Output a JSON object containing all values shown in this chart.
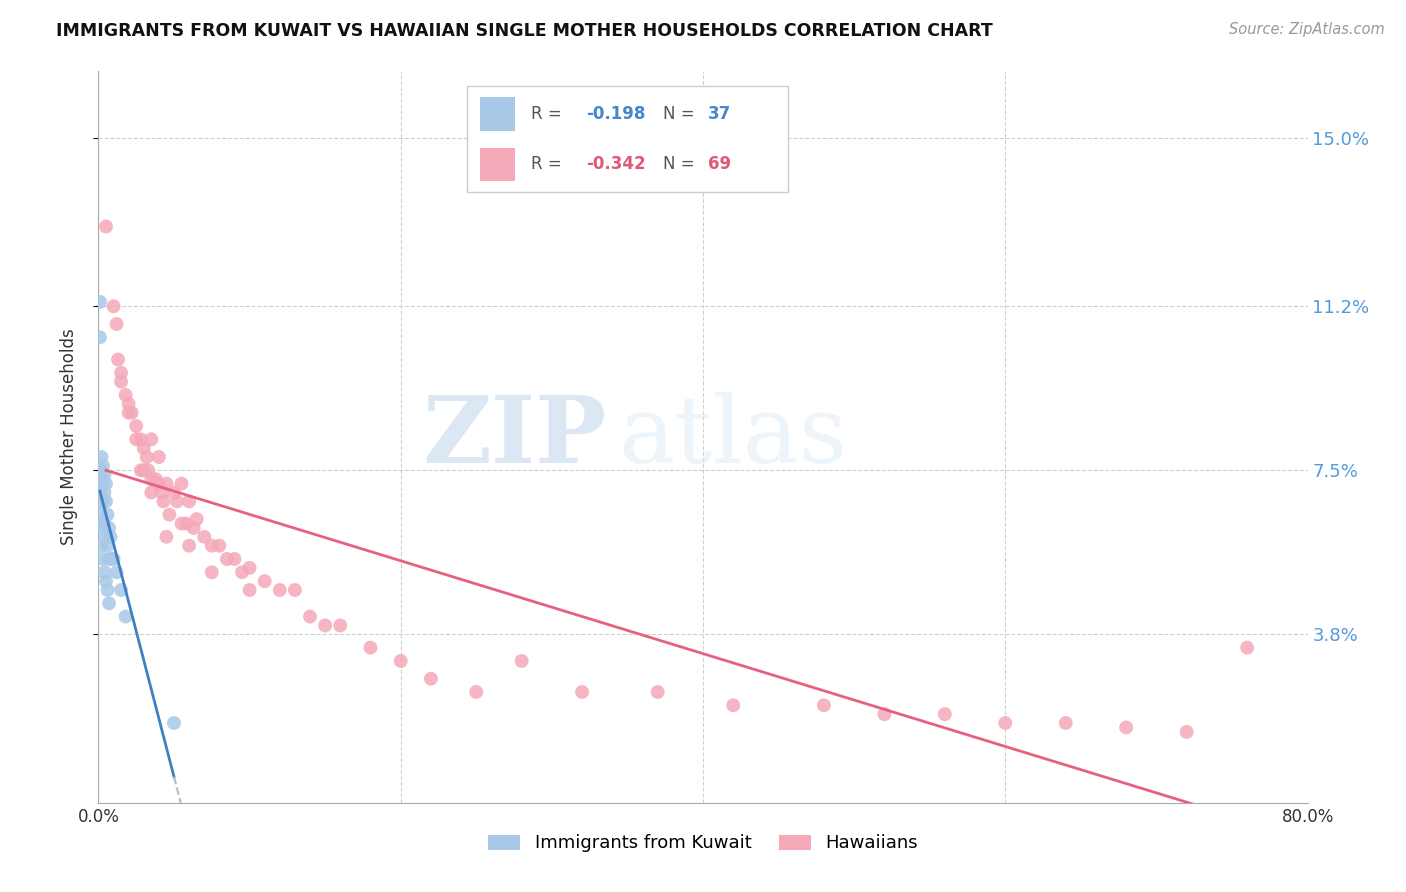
{
  "title": "IMMIGRANTS FROM KUWAIT VS HAWAIIAN SINGLE MOTHER HOUSEHOLDS CORRELATION CHART",
  "source": "Source: ZipAtlas.com",
  "ylabel": "Single Mother Households",
  "xlim": [
    0.0,
    0.8
  ],
  "ylim": [
    0.0,
    0.165
  ],
  "yticks": [
    0.038,
    0.075,
    0.112,
    0.15
  ],
  "ytick_labels": [
    "3.8%",
    "7.5%",
    "11.2%",
    "15.0%"
  ],
  "xticks": [
    0.0,
    0.2,
    0.4,
    0.6,
    0.8
  ],
  "xtick_labels": [
    "0.0%",
    "",
    "",
    "",
    "80.0%"
  ],
  "blue_R": "-0.198",
  "blue_N": "37",
  "pink_R": "-0.342",
  "pink_N": "69",
  "blue_color": "#a8c8e8",
  "pink_color": "#f4a8b8",
  "blue_line_color": "#4080c0",
  "pink_line_color": "#e86080",
  "watermark_zip": "ZIP",
  "watermark_atlas": "atlas",
  "background_color": "#ffffff",
  "grid_color": "#d0d0d0",
  "blue_x": [
    0.001,
    0.001,
    0.001,
    0.001,
    0.001,
    0.002,
    0.002,
    0.002,
    0.002,
    0.002,
    0.003,
    0.003,
    0.003,
    0.003,
    0.004,
    0.004,
    0.004,
    0.005,
    0.005,
    0.005,
    0.006,
    0.006,
    0.007,
    0.007,
    0.008,
    0.009,
    0.01,
    0.012,
    0.015,
    0.018,
    0.002,
    0.003,
    0.004,
    0.005,
    0.006,
    0.007,
    0.05
  ],
  "blue_y": [
    0.113,
    0.105,
    0.075,
    0.07,
    0.065,
    0.078,
    0.075,
    0.073,
    0.068,
    0.063,
    0.076,
    0.072,
    0.068,
    0.062,
    0.074,
    0.07,
    0.063,
    0.072,
    0.068,
    0.06,
    0.065,
    0.058,
    0.062,
    0.055,
    0.06,
    0.055,
    0.055,
    0.052,
    0.048,
    0.042,
    0.058,
    0.055,
    0.052,
    0.05,
    0.048,
    0.045,
    0.018
  ],
  "pink_x": [
    0.005,
    0.01,
    0.012,
    0.013,
    0.015,
    0.018,
    0.02,
    0.022,
    0.025,
    0.025,
    0.028,
    0.03,
    0.03,
    0.032,
    0.033,
    0.035,
    0.035,
    0.038,
    0.04,
    0.04,
    0.042,
    0.043,
    0.045,
    0.047,
    0.05,
    0.052,
    0.055,
    0.055,
    0.058,
    0.06,
    0.063,
    0.065,
    0.07,
    0.075,
    0.08,
    0.085,
    0.09,
    0.095,
    0.1,
    0.11,
    0.12,
    0.13,
    0.14,
    0.15,
    0.16,
    0.18,
    0.2,
    0.22,
    0.25,
    0.28,
    0.32,
    0.37,
    0.42,
    0.48,
    0.52,
    0.56,
    0.6,
    0.64,
    0.68,
    0.72,
    0.76,
    0.015,
    0.02,
    0.028,
    0.035,
    0.045,
    0.06,
    0.075,
    0.1
  ],
  "pink_y": [
    0.13,
    0.112,
    0.108,
    0.1,
    0.097,
    0.092,
    0.09,
    0.088,
    0.085,
    0.082,
    0.082,
    0.08,
    0.075,
    0.078,
    0.075,
    0.082,
    0.073,
    0.073,
    0.078,
    0.072,
    0.07,
    0.068,
    0.072,
    0.065,
    0.07,
    0.068,
    0.072,
    0.063,
    0.063,
    0.068,
    0.062,
    0.064,
    0.06,
    0.058,
    0.058,
    0.055,
    0.055,
    0.052,
    0.053,
    0.05,
    0.048,
    0.048,
    0.042,
    0.04,
    0.04,
    0.035,
    0.032,
    0.028,
    0.025,
    0.032,
    0.025,
    0.025,
    0.022,
    0.022,
    0.02,
    0.02,
    0.018,
    0.018,
    0.017,
    0.016,
    0.035,
    0.095,
    0.088,
    0.075,
    0.07,
    0.06,
    0.058,
    0.052,
    0.048
  ]
}
